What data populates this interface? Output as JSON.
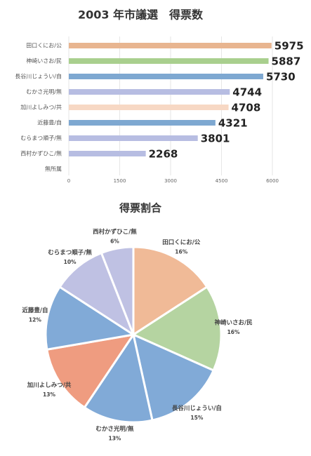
{
  "chart_data": [
    {
      "type": "bar",
      "orientation": "horizontal",
      "title": "2003 年市議選　得票数",
      "categories": [
        "田口くにお/公",
        "神崎いさお/民",
        "長谷川じょうい/自",
        "むかさ光明/無",
        "加川よしみつ/共",
        "近藤豊/自",
        "むらまつ順子/無",
        "西村かずひこ/無",
        "無所属"
      ],
      "values": [
        5975,
        5887,
        5730,
        4744,
        4708,
        4321,
        3801,
        2268,
        null
      ],
      "colors": [
        "#e8b590",
        "#a9cf8e",
        "#7ea8d1",
        "#b7bde2",
        "#f7d8c4",
        "#7ea8d1",
        "#b7bde2",
        "#b7bde2",
        null
      ],
      "xlim": [
        0,
        6000
      ],
      "xticks": [
        0,
        1500,
        3000,
        4500,
        6000
      ],
      "grid": true
    },
    {
      "type": "pie",
      "title": "得票割合",
      "categories": [
        "田口くにお/公",
        "神崎いさお/民",
        "長谷川じょうい/自",
        "むかさ光明/無",
        "加川よしみつ/共",
        "近藤豊/自",
        "むらまつ順子/無",
        "西村かずひこ/無"
      ],
      "values": [
        16,
        16,
        15,
        13,
        13,
        12,
        10,
        6
      ],
      "value_labels": [
        "16%",
        "16%",
        "15%",
        "13%",
        "13%",
        "12%",
        "10%",
        "6%"
      ],
      "colors": [
        "#f0ba97",
        "#b5d4a1",
        "#81aad7",
        "#81aad7",
        "#ef9c80",
        "#81aad7",
        "#bfc1e3",
        "#bfc1e3"
      ]
    }
  ]
}
